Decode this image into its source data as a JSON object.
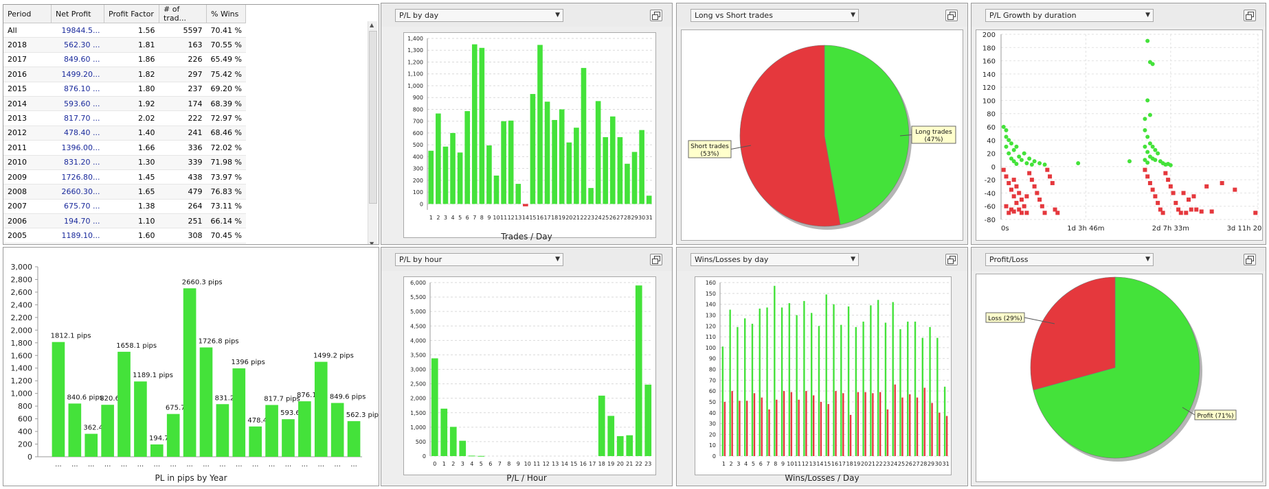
{
  "stats_table": {
    "columns": [
      "Period",
      "Net Profit",
      "Profit Factor",
      "# of trad...",
      "% Wins"
    ],
    "rows": [
      [
        "All",
        "19844.5...",
        "1.56",
        "5597",
        "70.41 %"
      ],
      [
        "2018",
        "562.30 ...",
        "1.81",
        "163",
        "70.55 %"
      ],
      [
        "2017",
        "849.60 ...",
        "1.86",
        "226",
        "65.49 %"
      ],
      [
        "2016",
        "1499.20...",
        "1.82",
        "297",
        "75.42 %"
      ],
      [
        "2015",
        "876.10 ...",
        "1.80",
        "237",
        "69.20 %"
      ],
      [
        "2014",
        "593.60 ...",
        "1.92",
        "174",
        "68.39 %"
      ],
      [
        "2013",
        "817.70 ...",
        "2.02",
        "222",
        "72.97 %"
      ],
      [
        "2012",
        "478.40 ...",
        "1.40",
        "241",
        "68.46 %"
      ],
      [
        "2011",
        "1396.00...",
        "1.66",
        "336",
        "72.02 %"
      ],
      [
        "2010",
        "831.20 ...",
        "1.30",
        "339",
        "71.98 %"
      ],
      [
        "2009",
        "1726.80...",
        "1.45",
        "438",
        "73.97 %"
      ],
      [
        "2008",
        "2660.30...",
        "1.65",
        "479",
        "76.83 %"
      ],
      [
        "2007",
        "675.70 ...",
        "1.38",
        "264",
        "73.11 %"
      ],
      [
        "2006",
        "194.70 ...",
        "1.10",
        "251",
        "66.14 %"
      ],
      [
        "2005",
        "1189.10...",
        "1.60",
        "308",
        "70.45 %"
      ]
    ]
  },
  "colors": {
    "green": "#44e23a",
    "red": "#e5383d"
  },
  "panels": {
    "pl_by_day": {
      "dropdown": "P/L by day",
      "xtitle": "Trades / Day"
    },
    "long_short": {
      "dropdown": "Long vs Short trades"
    },
    "pl_growth": {
      "dropdown": "P/L Growth by duration"
    },
    "pl_by_hour": {
      "dropdown": "P/L by hour",
      "xtitle": "P/L / Hour"
    },
    "wins_losses": {
      "dropdown": "Wins/Losses by day",
      "xtitle": "Wins/Losses / Day"
    },
    "profit_loss": {
      "dropdown": "Profit/Loss"
    },
    "pl_by_year": {
      "xtitle": "PL in pips by Year"
    }
  },
  "chart_data": [
    {
      "id": "pl_by_year",
      "type": "bar",
      "xlabel": "PL in pips by Year",
      "ylim": [
        0,
        3000
      ],
      "yticks": [
        "0",
        "200",
        "400",
        "600",
        "800",
        "1,000",
        "1,200",
        "1,400",
        "1,600",
        "1,800",
        "2,000",
        "2,200",
        "2,400",
        "2,600",
        "2,800",
        "3,000"
      ],
      "tick_label": "...",
      "values": [
        1812.1,
        840.6,
        362.4,
        820.6,
        1658.1,
        1189.1,
        194.7,
        675.7,
        2660.3,
        1726.8,
        831.2,
        1396,
        478.4,
        817.7,
        593.6,
        876.1,
        1499.2,
        849.6,
        562.3
      ],
      "data_labels": [
        "1812.1 pips",
        "840.6 pips",
        "362.4 pi",
        "820.6 pi",
        "1658.1 pips",
        "1189.1 pips",
        "194.7 pi",
        "675.7 pi",
        "2660.3 pips",
        "1726.8 pips",
        "831.2 pi",
        "1396 pips",
        "478.4 pi",
        "817.7 pips",
        "593.6 pi",
        "876.1 pi",
        "1499.2 pips",
        "849.6 pips",
        "562.3 pips"
      ]
    },
    {
      "id": "pl_by_day",
      "type": "bar",
      "xlabel": "Trades / Day",
      "ylim": [
        -50,
        1400
      ],
      "yticks": [
        "0",
        "100",
        "200",
        "300",
        "400",
        "500",
        "600",
        "700",
        "800",
        "900",
        "1,000",
        "1,100",
        "1,200",
        "1,300",
        "1,400"
      ],
      "categories": [
        "1",
        "2",
        "3",
        "4",
        "5",
        "6",
        "7",
        "8",
        "9",
        "10",
        "11",
        "12",
        "13",
        "14",
        "15",
        "16",
        "17",
        "18",
        "19",
        "20",
        "21",
        "22",
        "23",
        "24",
        "25",
        "26",
        "27",
        "28",
        "29",
        "30",
        "31"
      ],
      "values": [
        450,
        765,
        485,
        600,
        435,
        785,
        1350,
        1320,
        495,
        240,
        700,
        705,
        170,
        -20,
        930,
        1345,
        865,
        710,
        800,
        520,
        645,
        1150,
        135,
        870,
        565,
        740,
        565,
        340,
        440,
        625,
        70
      ]
    },
    {
      "id": "pl_by_hour",
      "type": "bar",
      "xlabel": "P/L / Hour",
      "ylim": [
        0,
        6000
      ],
      "yticks": [
        "0",
        "500",
        "1,000",
        "1,500",
        "2,000",
        "2,500",
        "3,000",
        "3,500",
        "4,000",
        "4,500",
        "5,000",
        "5,500",
        "6,000"
      ],
      "categories": [
        "0",
        "1",
        "2",
        "3",
        "4",
        "5",
        "6",
        "7",
        "8",
        "9",
        "10",
        "11",
        "12",
        "13",
        "14",
        "15",
        "16",
        "17",
        "18",
        "19",
        "20",
        "21",
        "22",
        "23"
      ],
      "values": [
        3380,
        1640,
        1010,
        530,
        15,
        5,
        0,
        0,
        0,
        0,
        0,
        0,
        0,
        0,
        0,
        0,
        0,
        0,
        2090,
        1390,
        690,
        720,
        5900,
        2470
      ]
    },
    {
      "id": "wins_losses",
      "type": "bar",
      "xlabel": "Wins/Losses / Day",
      "ylim": [
        0,
        160
      ],
      "yticks": [
        "0",
        "10",
        "20",
        "30",
        "40",
        "50",
        "60",
        "70",
        "80",
        "90",
        "100",
        "110",
        "120",
        "130",
        "140",
        "150",
        "160"
      ],
      "categories": [
        "1",
        "2",
        "3",
        "4",
        "5",
        "6",
        "7",
        "8",
        "9",
        "10",
        "11",
        "12",
        "13",
        "14",
        "15",
        "16",
        "17",
        "18",
        "19",
        "20",
        "21",
        "22",
        "23",
        "24",
        "25",
        "26",
        "27",
        "28",
        "29",
        "30",
        "31"
      ],
      "series": [
        {
          "name": "Wins",
          "values": [
            101,
            135,
            119,
            127,
            122,
            136,
            137,
            157,
            137,
            141,
            130,
            143,
            132,
            120,
            149,
            140,
            121,
            138,
            119,
            124,
            139,
            144,
            123,
            142,
            117,
            124,
            124,
            109,
            119,
            109,
            64
          ]
        },
        {
          "name": "Losses",
          "values": [
            50,
            60,
            51,
            51,
            58,
            54,
            43,
            52,
            60,
            59,
            52,
            60,
            56,
            50,
            48,
            60,
            58,
            38,
            59,
            59,
            58,
            59,
            43,
            66,
            54,
            57,
            54,
            63,
            49,
            40,
            37
          ]
        }
      ]
    },
    {
      "id": "long_short",
      "type": "pie",
      "slices": [
        {
          "label": "Long trades",
          "value": 47
        },
        {
          "label": "Short trades",
          "value": 53
        }
      ],
      "labels": [
        "Long trades",
        "(47%)",
        "Short trades",
        "(53%)"
      ]
    },
    {
      "id": "profit_loss",
      "type": "pie",
      "slices": [
        {
          "label": "Profit",
          "value": 71
        },
        {
          "label": "Loss",
          "value": 29
        }
      ],
      "labels": [
        "Profit (71%)",
        "Loss (29%)"
      ]
    },
    {
      "id": "pl_growth",
      "type": "scatter",
      "ylim": [
        -80,
        200
      ],
      "yticks": [
        "-80",
        "-60",
        "-40",
        "-20",
        "0",
        "20",
        "40",
        "60",
        "80",
        "100",
        "120",
        "140",
        "160",
        "180",
        "200"
      ],
      "xticks": [
        "0s",
        "1d 3h 46m",
        "2d 7h 33m",
        "3d 11h 20"
      ],
      "series": [
        {
          "name": "Profit",
          "points": [
            [
              0.01,
              60
            ],
            [
              0.02,
              45
            ],
            [
              0.02,
              30
            ],
            [
              0.03,
              20
            ],
            [
              0.04,
              12
            ],
            [
              0.05,
              8
            ],
            [
              0.06,
              4
            ],
            [
              0.02,
              55
            ],
            [
              0.04,
              35
            ],
            [
              0.07,
              15
            ],
            [
              0.08,
              10
            ],
            [
              0.1,
              5
            ],
            [
              0.12,
              3
            ],
            [
              0.03,
              40
            ],
            [
              0.05,
              25
            ],
            [
              0.09,
              20
            ],
            [
              0.11,
              12
            ],
            [
              0.13,
              8
            ],
            [
              0.15,
              5
            ],
            [
              0.06,
              30
            ],
            [
              0.17,
              3
            ],
            [
              0.3,
              5
            ],
            [
              0.5,
              8
            ],
            [
              0.57,
              190
            ],
            [
              0.58,
              158
            ],
            [
              0.59,
              155
            ],
            [
              0.57,
              100
            ],
            [
              0.58,
              78
            ],
            [
              0.56,
              72
            ],
            [
              0.56,
              55
            ],
            [
              0.57,
              45
            ],
            [
              0.58,
              35
            ],
            [
              0.59,
              30
            ],
            [
              0.6,
              25
            ],
            [
              0.61,
              20
            ],
            [
              0.56,
              30
            ],
            [
              0.57,
              22
            ],
            [
              0.58,
              15
            ],
            [
              0.59,
              12
            ],
            [
              0.6,
              10
            ],
            [
              0.62,
              8
            ],
            [
              0.63,
              5
            ],
            [
              0.64,
              3
            ],
            [
              0.56,
              10
            ],
            [
              0.57,
              6
            ],
            [
              0.65,
              4
            ],
            [
              0.66,
              2
            ]
          ]
        },
        {
          "name": "Loss",
          "points": [
            [
              0.01,
              -5
            ],
            [
              0.02,
              -15
            ],
            [
              0.03,
              -25
            ],
            [
              0.04,
              -35
            ],
            [
              0.05,
              -45
            ],
            [
              0.06,
              -55
            ],
            [
              0.07,
              -65
            ],
            [
              0.08,
              -70
            ],
            [
              0.02,
              -60
            ],
            [
              0.03,
              -70
            ],
            [
              0.04,
              -65
            ],
            [
              0.05,
              -20
            ],
            [
              0.06,
              -30
            ],
            [
              0.07,
              -40
            ],
            [
              0.08,
              -50
            ],
            [
              0.09,
              -60
            ],
            [
              0.1,
              -70
            ],
            [
              0.11,
              -10
            ],
            [
              0.12,
              -20
            ],
            [
              0.13,
              -30
            ],
            [
              0.14,
              -40
            ],
            [
              0.15,
              -50
            ],
            [
              0.16,
              -60
            ],
            [
              0.17,
              -70
            ],
            [
              0.18,
              -5
            ],
            [
              0.19,
              -15
            ],
            [
              0.2,
              -25
            ],
            [
              0.21,
              -65
            ],
            [
              0.22,
              -70
            ],
            [
              0.1,
              -45
            ],
            [
              0.05,
              -68
            ],
            [
              0.56,
              -5
            ],
            [
              0.57,
              -15
            ],
            [
              0.58,
              -25
            ],
            [
              0.59,
              -35
            ],
            [
              0.6,
              -45
            ],
            [
              0.61,
              -55
            ],
            [
              0.62,
              -65
            ],
            [
              0.63,
              -70
            ],
            [
              0.64,
              -10
            ],
            [
              0.65,
              -20
            ],
            [
              0.66,
              -30
            ],
            [
              0.67,
              -40
            ],
            [
              0.68,
              -55
            ],
            [
              0.69,
              -65
            ],
            [
              0.7,
              -70
            ],
            [
              0.72,
              -70
            ],
            [
              0.74,
              -65
            ],
            [
              0.76,
              -65
            ],
            [
              0.8,
              -30
            ],
            [
              0.86,
              -25
            ],
            [
              0.91,
              -35
            ],
            [
              0.71,
              -40
            ],
            [
              0.73,
              -50
            ],
            [
              0.75,
              -45
            ],
            [
              0.99,
              -70
            ],
            [
              0.78,
              -68
            ],
            [
              0.82,
              -68
            ]
          ]
        }
      ]
    }
  ]
}
